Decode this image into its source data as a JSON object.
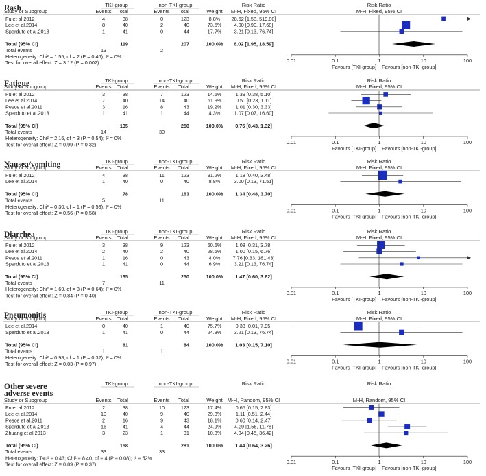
{
  "headers": {
    "exp_group": "TKI-group",
    "ctl_group": "non-TKI-group",
    "study": "Study or Subgroup",
    "events": "Events",
    "total": "Total",
    "weight": "Weight",
    "risk_ratio": "Risk Ratio"
  },
  "axis": {
    "ticks": [
      "0.01",
      "0.1",
      "1",
      "10",
      "100"
    ],
    "favours_left": "Favours [TKI-group]",
    "favours_right": "Favours [non-TKI-group]"
  },
  "chart_data": [
    {
      "type": "forest",
      "title": "Rash",
      "method": "M-H, Fixed, 95% CI",
      "xscale": "log",
      "xlim": [
        0.01,
        100
      ],
      "studies": [
        {
          "name": "Fu et al.2012",
          "e1": "4",
          "n1": "38",
          "e2": "0",
          "n2": "123",
          "weight": "8.8%",
          "ci_text": "28.62 [1.58, 519.80]",
          "rr": 28.62,
          "lo": 1.58,
          "hi": 519.8
        },
        {
          "name": "Lee et al.2014",
          "e1": "8",
          "n1": "40",
          "e2": "2",
          "n2": "40",
          "weight": "73.5%",
          "ci_text": "4.00 [0.90, 17.68]",
          "rr": 4.0,
          "lo": 0.9,
          "hi": 17.68
        },
        {
          "name": "Sperduto et al.2013",
          "e1": "1",
          "n1": "41",
          "e2": "0",
          "n2": "44",
          "weight": "17.7%",
          "ci_text": "3.21 [0.13, 76.74]",
          "rr": 3.21,
          "lo": 0.13,
          "hi": 76.74
        }
      ],
      "total": {
        "label": "Total (95% CI)",
        "n1": "119",
        "n2": "207",
        "weight": "100.0%",
        "ci_text": "6.02 [1.95, 18.59]",
        "rr": 6.02,
        "lo": 1.95,
        "hi": 18.59
      },
      "events": {
        "label": "Total events",
        "e1": "13",
        "e2": "2"
      },
      "heterogeneity": "Heterogeneity: Chi² = 1.55, df = 2 (P = 0.46); I² = 0%",
      "overall": "Test for overall effect: Z = 3.12 (P = 0.002)"
    },
    {
      "type": "forest",
      "title": "Fatigue",
      "method": "M-H, Fixed, 95% CI",
      "xscale": "log",
      "xlim": [
        0.01,
        100
      ],
      "studies": [
        {
          "name": "Fu et al.2012",
          "e1": "3",
          "n1": "38",
          "e2": "7",
          "n2": "123",
          "weight": "14.6%",
          "ci_text": "1.39 [0.38, 5.10]",
          "rr": 1.39,
          "lo": 0.38,
          "hi": 5.1
        },
        {
          "name": "Lee et al.2014",
          "e1": "7",
          "n1": "40",
          "e2": "14",
          "n2": "40",
          "weight": "61.9%",
          "ci_text": "0.50 [0.23, 1.11]",
          "rr": 0.5,
          "lo": 0.23,
          "hi": 1.11
        },
        {
          "name": "Pesce et al.2011",
          "e1": "3",
          "n1": "16",
          "e2": "8",
          "n2": "43",
          "weight": "19.2%",
          "ci_text": "1.01 [0.30, 3.33]",
          "rr": 1.01,
          "lo": 0.3,
          "hi": 3.33
        },
        {
          "name": "Sperduto et al.2013",
          "e1": "1",
          "n1": "41",
          "e2": "1",
          "n2": "44",
          "weight": "4.3%",
          "ci_text": "1.07 [0.07, 16.60]",
          "rr": 1.07,
          "lo": 0.07,
          "hi": 16.6
        }
      ],
      "total": {
        "label": "Total (95% CI)",
        "n1": "135",
        "n2": "250",
        "weight": "100.0%",
        "ci_text": "0.75 [0.43, 1.32]",
        "rr": 0.75,
        "lo": 0.43,
        "hi": 1.32
      },
      "events": {
        "label": "Total events",
        "e1": "14",
        "e2": "30"
      },
      "heterogeneity": "Heterogeneity: Chi² = 2.16, df = 3 (P = 0.54); I² = 0%",
      "overall": "Test for overall effect: Z = 0.99 (P = 0.32)"
    },
    {
      "type": "forest",
      "title": "Nausea/vomiting",
      "method": "M-H, Fixed, 95% CI",
      "xscale": "log",
      "xlim": [
        0.01,
        100
      ],
      "studies": [
        {
          "name": "Fu et al.2012",
          "e1": "4",
          "n1": "38",
          "e2": "11",
          "n2": "123",
          "weight": "91.2%",
          "ci_text": "1.18 [0.40, 3.48]",
          "rr": 1.18,
          "lo": 0.4,
          "hi": 3.48
        },
        {
          "name": "Lee et al.2014",
          "e1": "1",
          "n1": "40",
          "e2": "0",
          "n2": "40",
          "weight": "8.8%",
          "ci_text": "3.00 [0.13, 71.51]",
          "rr": 3.0,
          "lo": 0.13,
          "hi": 71.51
        }
      ],
      "total": {
        "label": "Total (95% CI)",
        "n1": "78",
        "n2": "163",
        "weight": "100.0%",
        "ci_text": "1.34 [0.48, 3.70]",
        "rr": 1.34,
        "lo": 0.48,
        "hi": 3.7
      },
      "events": {
        "label": "Total events",
        "e1": "5",
        "e2": "11"
      },
      "heterogeneity": "Heterogeneity: Chi² = 0.30, df = 1 (P = 0.58); I² = 0%",
      "overall": "Test for overall effect: Z = 0.56 (P = 0.58)"
    },
    {
      "type": "forest",
      "title": "Diarrhea",
      "method": "M-H, Fixed, 95% CI",
      "xscale": "log",
      "xlim": [
        0.01,
        100
      ],
      "studies": [
        {
          "name": "Fu et al.2012",
          "e1": "3",
          "n1": "38",
          "e2": "9",
          "n2": "123",
          "weight": "60.6%",
          "ci_text": "1.08 [0.31, 3.78]",
          "rr": 1.08,
          "lo": 0.31,
          "hi": 3.78
        },
        {
          "name": "Lee et al.2014",
          "e1": "2",
          "n1": "40",
          "e2": "2",
          "n2": "40",
          "weight": "28.5%",
          "ci_text": "1.00 [0.15, 6.76]",
          "rr": 1.0,
          "lo": 0.15,
          "hi": 6.76
        },
        {
          "name": "Pesce et al.2011",
          "e1": "1",
          "n1": "16",
          "e2": "0",
          "n2": "43",
          "weight": "4.0%",
          "ci_text": "7.76 [0.33, 181.43]",
          "rr": 7.76,
          "lo": 0.33,
          "hi": 181.43
        },
        {
          "name": "Sperduto et al.2013",
          "e1": "1",
          "n1": "41",
          "e2": "0",
          "n2": "44",
          "weight": "6.9%",
          "ci_text": "3.21 [0.13, 76.74]",
          "rr": 3.21,
          "lo": 0.13,
          "hi": 76.74
        }
      ],
      "total": {
        "label": "Total (95% CI)",
        "n1": "135",
        "n2": "250",
        "weight": "100.0%",
        "ci_text": "1.47 [0.60, 3.62]",
        "rr": 1.47,
        "lo": 0.6,
        "hi": 3.62
      },
      "events": {
        "label": "Total events",
        "e1": "7",
        "e2": "11"
      },
      "heterogeneity": "Heterogeneity: Chi² = 1.69, df = 3 (P = 0.64); I² = 0%",
      "overall": "Test for overall effect: Z = 0.84 (P = 0.40)"
    },
    {
      "type": "forest",
      "title": "Pneumonitis",
      "method": "M-H, Fixed, 95% CI",
      "xscale": "log",
      "xlim": [
        0.01,
        100
      ],
      "studies": [
        {
          "name": "Lee et al.2014",
          "e1": "0",
          "n1": "40",
          "e2": "1",
          "n2": "40",
          "weight": "75.7%",
          "ci_text": "0.33 [0.01, 7.95]",
          "rr": 0.33,
          "lo": 0.01,
          "hi": 7.95
        },
        {
          "name": "Sperduto et al.2013",
          "e1": "1",
          "n1": "41",
          "e2": "0",
          "n2": "44",
          "weight": "24.3%",
          "ci_text": "3.21 [0.13, 76.74]",
          "rr": 3.21,
          "lo": 0.13,
          "hi": 76.74
        }
      ],
      "total": {
        "label": "Total (95% CI)",
        "n1": "81",
        "n2": "84",
        "weight": "100.0%",
        "ci_text": "1.03 [0.15, 7.10]",
        "rr": 1.03,
        "lo": 0.15,
        "hi": 7.1
      },
      "events": {
        "label": "Total events",
        "e1": "1",
        "e2": "1"
      },
      "heterogeneity": "Heterogeneity: Chi² = 0.98, df = 1 (P = 0.32); I² = 0%",
      "overall": "Test for overall effect: Z = 0.03 (P = 0.97)"
    },
    {
      "type": "forest",
      "title": "Other severe adverse events",
      "title_lines": [
        "Other severe",
        "adverse events"
      ],
      "method": "M-H, Random, 95% CI",
      "xscale": "log",
      "xlim": [
        0.01,
        100
      ],
      "studies": [
        {
          "name": "Fu et al.2012",
          "e1": "2",
          "n1": "38",
          "e2": "10",
          "n2": "123",
          "weight": "17.4%",
          "ci_text": "0.65 [0.15, 2.83]",
          "rr": 0.65,
          "lo": 0.15,
          "hi": 2.83
        },
        {
          "name": "Lee et al.2014",
          "e1": "10",
          "n1": "40",
          "e2": "9",
          "n2": "40",
          "weight": "29.3%",
          "ci_text": "1.11 [0.51, 2.44]",
          "rr": 1.11,
          "lo": 0.51,
          "hi": 2.44
        },
        {
          "name": "Pesce et al.2011",
          "e1": "2",
          "n1": "16",
          "e2": "9",
          "n2": "43",
          "weight": "18.1%",
          "ci_text": "0.60 [0.14, 2.47]",
          "rr": 0.6,
          "lo": 0.14,
          "hi": 2.47
        },
        {
          "name": "Sperduto et al.2013",
          "e1": "16",
          "n1": "41",
          "e2": "4",
          "n2": "44",
          "weight": "24.9%",
          "ci_text": "4.29 [1.56, 11.78]",
          "rr": 4.29,
          "lo": 1.56,
          "hi": 11.78
        },
        {
          "name": "Zhuang et al.2013",
          "e1": "3",
          "n1": "23",
          "e2": "1",
          "n2": "31",
          "weight": "10.3%",
          "ci_text": "4.04 [0.45, 36.42]",
          "rr": 4.04,
          "lo": 0.45,
          "hi": 36.42
        }
      ],
      "total": {
        "label": "Total (95% CI)",
        "n1": "158",
        "n2": "281",
        "weight": "100.0%",
        "ci_text": "1.44 [0.64, 3.26]",
        "rr": 1.44,
        "lo": 0.64,
        "hi": 3.26
      },
      "events": {
        "label": "Total events",
        "e1": "33",
        "e2": "33"
      },
      "heterogeneity": "Heterogeneity: Tau² = 0.43; Chi² = 8.40, df = 4 (P = 0.08); I² = 52%",
      "overall": "Test for overall effect: Z = 0.89 (P = 0.37)"
    }
  ],
  "colors": {
    "marker": "#1a2dbf",
    "diamond": "#000000",
    "line": "#333333",
    "text": "#222222"
  }
}
